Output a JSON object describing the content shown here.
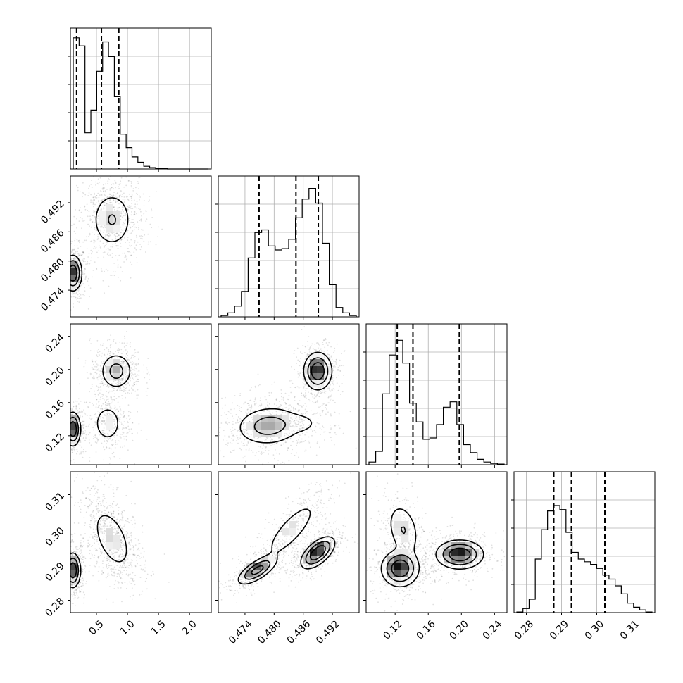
{
  "chart_data": {
    "type": "corner",
    "title": "",
    "params": [
      {
        "range": [
          0.08,
          2.35
        ],
        "ticks": [
          0.5,
          1.0,
          1.5,
          2.0
        ],
        "tick_labels": [
          "0.5",
          "1.0",
          "1.5",
          "2.0"
        ],
        "quantiles": [
          0.18,
          0.58,
          0.86
        ],
        "hist": [
          0.98,
          0.92,
          0.27,
          0.44,
          0.73,
          0.95,
          0.84,
          0.54,
          0.26,
          0.16,
          0.09,
          0.05,
          0.02,
          0.01,
          0.005,
          0.002,
          0,
          0,
          0,
          0,
          0,
          0,
          0
        ],
        "modes": [
          {
            "m": 0.12,
            "s": 0.08,
            "w": 0.4
          },
          {
            "m": 0.75,
            "s": 0.2,
            "w": 0.6
          }
        ]
      },
      {
        "range": [
          0.4685,
          0.4975
        ],
        "ticks": [
          0.474,
          0.48,
          0.486,
          0.492
        ],
        "tick_labels": [
          "0.474",
          "0.480",
          "0.486",
          "0.492"
        ],
        "quantiles": [
          0.4769,
          0.4845,
          0.4891
        ],
        "hist": [
          0.01,
          0.03,
          0.08,
          0.19,
          0.44,
          0.63,
          0.65,
          0.53,
          0.5,
          0.51,
          0.58,
          0.74,
          0.88,
          0.96,
          0.85,
          0.55,
          0.24,
          0.07,
          0.03,
          0.01
        ],
        "modes": [
          {
            "m": 0.4775,
            "s": 0.003,
            "w": 0.4
          },
          {
            "m": 0.489,
            "s": 0.0025,
            "w": 0.6
          }
        ]
      },
      {
        "range": [
          0.085,
          0.255
        ],
        "ticks": [
          0.12,
          0.16,
          0.2,
          0.24
        ],
        "tick_labels": [
          "0.12",
          "0.16",
          "0.20",
          "0.24"
        ],
        "quantiles": [
          0.1225,
          0.1415,
          0.1975
        ],
        "hist": [
          0.02,
          0.1,
          0.53,
          0.82,
          0.93,
          0.76,
          0.46,
          0.32,
          0.19,
          0.2,
          0.3,
          0.43,
          0.47,
          0.3,
          0.15,
          0.09,
          0.04,
          0.02,
          0.01,
          0.005
        ],
        "modes": [
          {
            "m": 0.128,
            "s": 0.014,
            "w": 0.6
          },
          {
            "m": 0.2,
            "s": 0.012,
            "w": 0.4
          }
        ]
      },
      {
        "range": [
          0.2765,
          0.3165
        ],
        "ticks": [
          0.28,
          0.29,
          0.3,
          0.31
        ],
        "tick_labels": [
          "0.28",
          "0.29",
          "0.30",
          "0.31"
        ],
        "quantiles": [
          0.2878,
          0.2928,
          0.3023
        ],
        "hist": [
          0.005,
          0.03,
          0.1,
          0.4,
          0.62,
          0.76,
          0.8,
          0.77,
          0.6,
          0.45,
          0.4,
          0.38,
          0.36,
          0.33,
          0.28,
          0.25,
          0.2,
          0.14,
          0.07,
          0.04,
          0.02,
          0.005
        ],
        "modes": [
          {
            "m": 0.29,
            "s": 0.003,
            "w": 0.6
          },
          {
            "m": 0.302,
            "s": 0.0055,
            "w": 0.4
          }
        ]
      }
    ],
    "pairs": [
      {
        "row": 1,
        "col": 0,
        "clusters": [
          {
            "mx": 0.12,
            "my": 0.4775,
            "sx": 0.07,
            "sy": 0.0018,
            "c": 0,
            "w": 0.4
          },
          {
            "mx": 0.75,
            "my": 0.4885,
            "sx": 0.17,
            "sy": 0.003,
            "c": 0,
            "w": 0.6
          }
        ]
      },
      {
        "row": 2,
        "col": 0,
        "clusters": [
          {
            "mx": 0.12,
            "my": 0.128,
            "sx": 0.06,
            "sy": 0.01,
            "c": 0,
            "w": 0.35
          },
          {
            "mx": 0.68,
            "my": 0.135,
            "sx": 0.12,
            "sy": 0.012,
            "c": 0,
            "w": 0.25
          },
          {
            "mx": 0.82,
            "my": 0.198,
            "sx": 0.13,
            "sy": 0.011,
            "c": 0,
            "w": 0.4
          }
        ]
      },
      {
        "row": 2,
        "col": 1,
        "clusters": [
          {
            "mx": 0.479,
            "my": 0.132,
            "sx": 0.0035,
            "sy": 0.012,
            "c": 0.1,
            "w": 0.55
          },
          {
            "mx": 0.489,
            "my": 0.198,
            "sx": 0.0014,
            "sy": 0.011,
            "c": 0,
            "w": 0.4
          },
          {
            "mx": 0.486,
            "my": 0.135,
            "sx": 0.002,
            "sy": 0.007,
            "c": 0,
            "w": 0.05
          }
        ]
      },
      {
        "row": 3,
        "col": 0,
        "clusters": [
          {
            "mx": 0.12,
            "my": 0.2885,
            "sx": 0.06,
            "sy": 0.0024,
            "c": 0,
            "w": 0.4
          },
          {
            "mx": 0.75,
            "my": 0.2975,
            "sx": 0.16,
            "sy": 0.0045,
            "c": -0.5,
            "w": 0.6
          }
        ]
      },
      {
        "row": 3,
        "col": 1,
        "clusters": [
          {
            "mx": 0.4765,
            "my": 0.2885,
            "sx": 0.002,
            "sy": 0.002,
            "c": 0.7,
            "w": 0.3
          },
          {
            "mx": 0.4835,
            "my": 0.3,
            "sx": 0.0028,
            "sy": 0.0042,
            "c": 0.8,
            "w": 0.3
          },
          {
            "mx": 0.489,
            "my": 0.2935,
            "sx": 0.0017,
            "sy": 0.0022,
            "c": 0.6,
            "w": 0.4
          }
        ]
      },
      {
        "row": 3,
        "col": 2,
        "clusters": [
          {
            "mx": 0.126,
            "my": 0.289,
            "sx": 0.011,
            "sy": 0.0025,
            "c": 0,
            "w": 0.4
          },
          {
            "mx": 0.13,
            "my": 0.3,
            "sx": 0.01,
            "sy": 0.004,
            "c": -0.3,
            "w": 0.2
          },
          {
            "mx": 0.198,
            "my": 0.293,
            "sx": 0.014,
            "sy": 0.002,
            "c": 0,
            "w": 0.4
          }
        ]
      }
    ],
    "grid": true,
    "quantile_lines": "dashed"
  }
}
